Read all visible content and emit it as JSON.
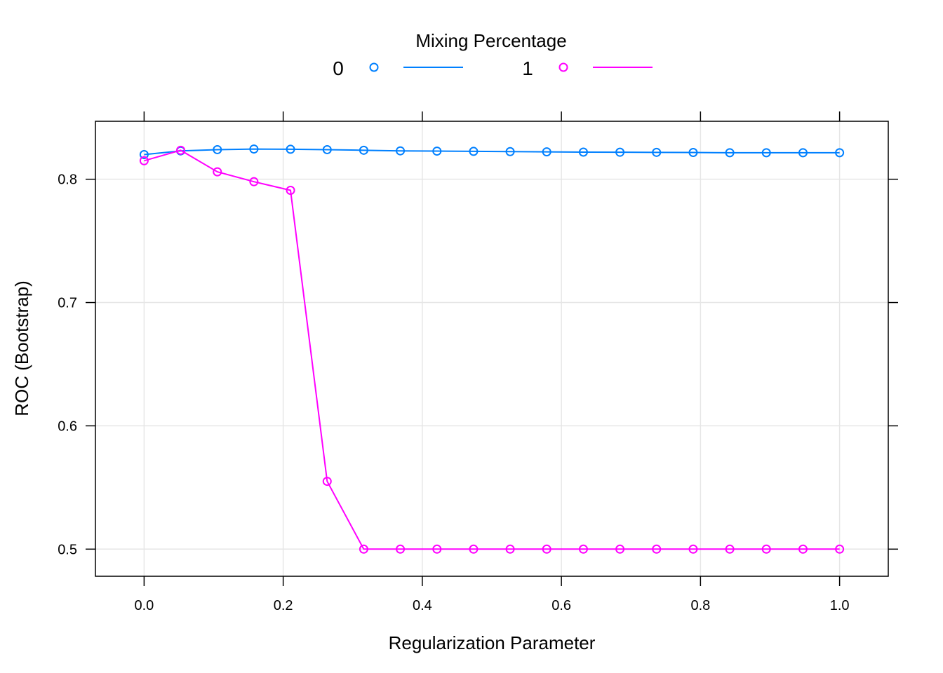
{
  "chart_data": {
    "type": "line",
    "title": "",
    "xlabel": "Regularization Parameter",
    "ylabel": "ROC (Bootstrap)",
    "xlim": [
      -0.07,
      1.07
    ],
    "ylim": [
      0.478,
      0.847
    ],
    "xticks": [
      0.0,
      0.2,
      0.4,
      0.6,
      0.8,
      1.0
    ],
    "xtick_labels": [
      "0.0",
      "0.2",
      "0.4",
      "0.6",
      "0.8",
      "1.0"
    ],
    "yticks": [
      0.5,
      0.6,
      0.7,
      0.8
    ],
    "ytick_labels": [
      "0.5",
      "0.6",
      "0.7",
      "0.8"
    ],
    "grid": true,
    "legend": {
      "title": "Mixing Percentage",
      "placement": "top"
    },
    "x": [
      0.0,
      0.0526,
      0.1053,
      0.1579,
      0.2105,
      0.2632,
      0.3158,
      0.3684,
      0.4211,
      0.4737,
      0.5263,
      0.5789,
      0.6316,
      0.6842,
      0.7368,
      0.7895,
      0.8421,
      0.8947,
      0.9474,
      1.0
    ],
    "series": [
      {
        "name": "0",
        "color": "#0080ff",
        "values": [
          0.82,
          0.823,
          0.824,
          0.8245,
          0.8243,
          0.824,
          0.8235,
          0.823,
          0.8228,
          0.8226,
          0.8224,
          0.8222,
          0.822,
          0.8219,
          0.8218,
          0.8217,
          0.8215,
          0.8215,
          0.8215,
          0.8215
        ]
      },
      {
        "name": "1",
        "color": "#ff00ff",
        "values": [
          0.815,
          0.8235,
          0.806,
          0.798,
          0.791,
          0.555,
          0.5,
          0.5,
          0.5,
          0.5,
          0.5,
          0.5,
          0.5,
          0.5,
          0.5,
          0.5,
          0.5,
          0.5,
          0.5,
          0.5
        ]
      }
    ]
  }
}
